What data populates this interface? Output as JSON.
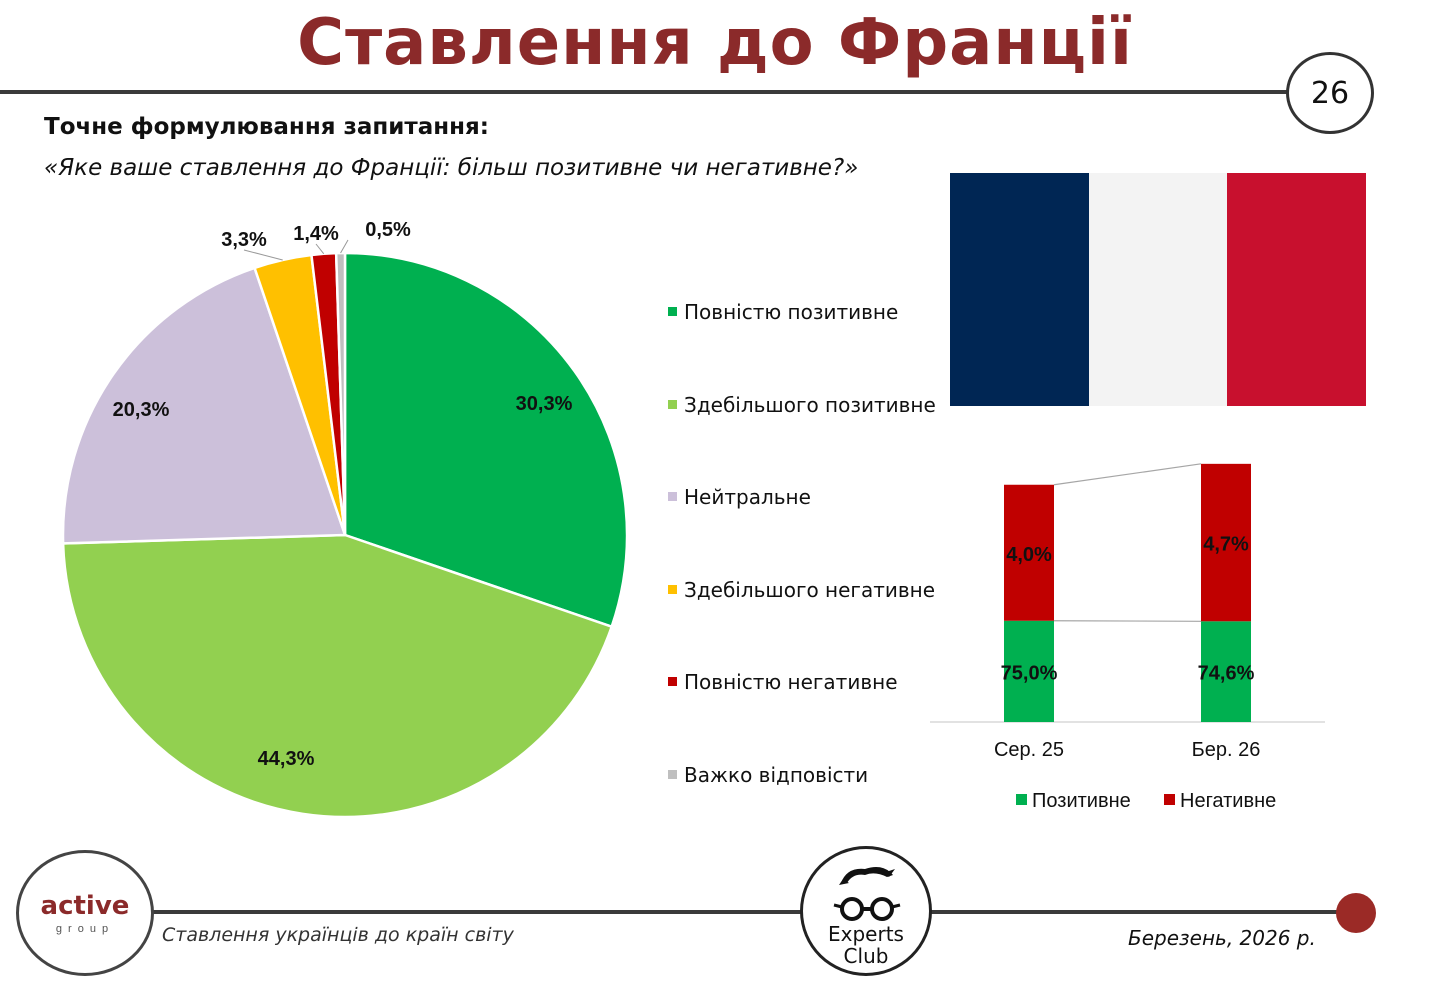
{
  "header": {
    "title": "Ставлення до Франції",
    "page_number": "26"
  },
  "question": {
    "label": "Точне формулювання запитання:",
    "text": "«Яке ваше ставлення до Франції: більш позитивне чи негативне?»"
  },
  "colors": {
    "title": "#8b2a2a",
    "flag_blue": "#002654",
    "flag_white": "#f3f3f3",
    "flag_red": "#c8102e"
  },
  "chart_data": [
    {
      "type": "pie",
      "slices": [
        {
          "name": "Повністю позитивне",
          "value": 30.3,
          "label": "30,3%",
          "color": "#00b050"
        },
        {
          "name": "Здебільшого позитивне",
          "value": 44.3,
          "label": "44,3%",
          "color": "#92d050"
        },
        {
          "name": "Нейтральне",
          "value": 20.3,
          "label": "20,3%",
          "color": "#ccc0da"
        },
        {
          "name": "Здебільшого негативне",
          "value": 3.3,
          "label": "3,3%",
          "color": "#ffc000"
        },
        {
          "name": "Повністю негативне",
          "value": 1.4,
          "label": "1,4%",
          "color": "#c00000"
        },
        {
          "name": "Важко відповісти",
          "value": 0.5,
          "label": "0,5%",
          "color": "#bfbfbf"
        }
      ],
      "legend_position": "right"
    },
    {
      "type": "bar",
      "stacked": true,
      "categories": [
        "Сер. 25",
        "Бер. 26"
      ],
      "series": [
        {
          "name": "Позитивне",
          "values": [
            75.0,
            74.6
          ],
          "labels": [
            "75,0%",
            "74,6%"
          ],
          "color": "#00b050"
        },
        {
          "name": "Негативне",
          "values": [
            4.0,
            4.7
          ],
          "labels": [
            "4,0%",
            "4,7%"
          ],
          "color": "#c00000"
        }
      ],
      "series_lines": true,
      "legend_position": "bottom"
    }
  ],
  "footer": {
    "logo_main": "active",
    "logo_sub": "group",
    "left_text": "Ставлення українців до країн світу",
    "experts_line1": "Experts",
    "experts_line2": "Club",
    "date": "Березень, 2026 р."
  }
}
